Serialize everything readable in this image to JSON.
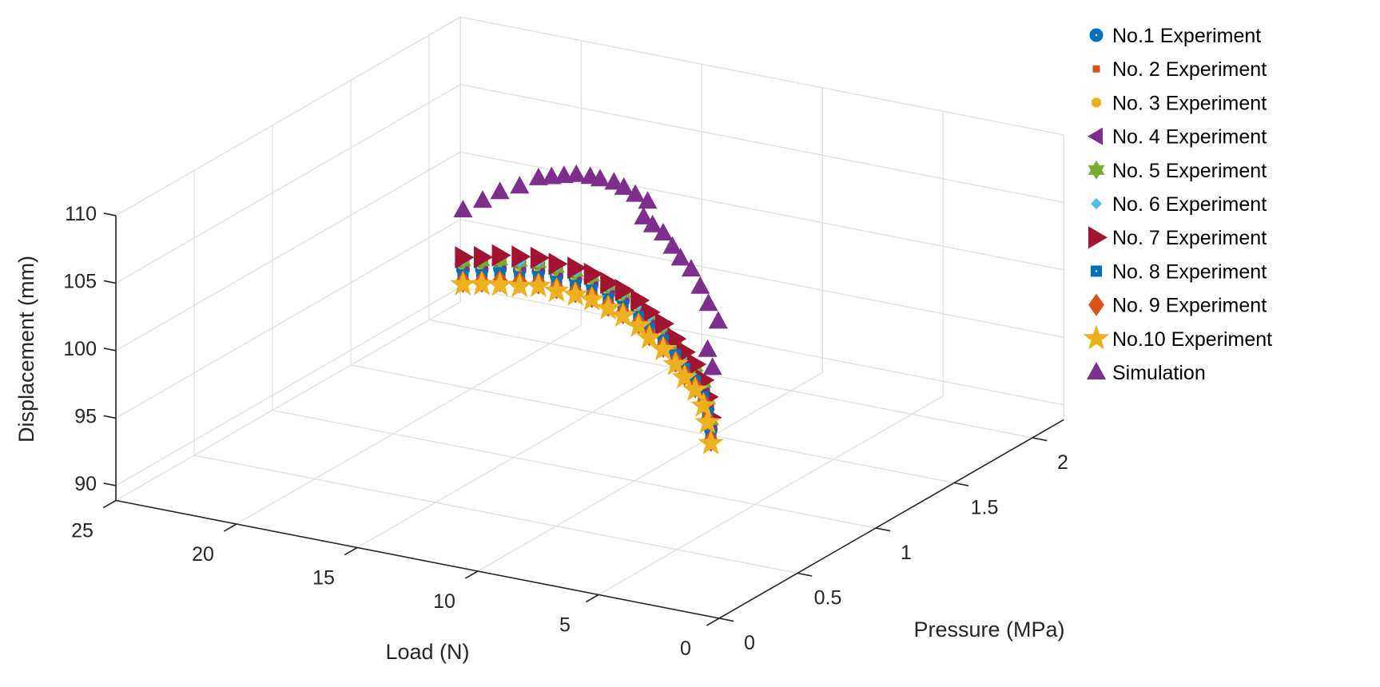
{
  "chart_data": {
    "type": "scatter3d",
    "xlabel": "Load (N)",
    "ylabel": "Pressure (MPa)",
    "zlabel": "Displacement (mm)",
    "xlim": [
      0,
      25
    ],
    "ylim": [
      0,
      2.2
    ],
    "zlim": [
      88.9,
      110
    ],
    "xticks": [
      0,
      5,
      10,
      15,
      20,
      25
    ],
    "xtick_labels": [
      "0",
      "5",
      "10",
      "15",
      "20",
      "25"
    ],
    "yticks": [
      0,
      0.5,
      1,
      1.5,
      2
    ],
    "ytick_labels": [
      "0",
      "0.5",
      "1",
      "1.5",
      "2"
    ],
    "zticks": [
      90,
      95,
      100,
      105,
      110
    ],
    "ztick_labels": [
      "90",
      "95",
      "100",
      "105",
      "110"
    ],
    "grid": true,
    "legend_position": "right-outside",
    "experiment_points": {
      "load": [
        24.7,
        23.4,
        22.0,
        20.6,
        19.3,
        17.9,
        16.6,
        15.4,
        14.2,
        13.2,
        12.1,
        11.2,
        10.3,
        9.4,
        8.7,
        8.0,
        7.4,
        7.1,
        6.9
      ],
      "pressure": [
        2.17,
        2.09,
        1.99,
        1.9,
        1.82,
        1.72,
        1.64,
        1.56,
        1.48,
        1.42,
        1.35,
        1.28,
        1.23,
        1.17,
        1.12,
        1.08,
        1.04,
        1.02,
        1.01
      ]
    },
    "series": [
      {
        "name": "No.1 Experiment",
        "marker": "circle-dot",
        "color": "#0072BD",
        "displacement": [
          91.6,
          92.6,
          93.8,
          94.8,
          95.7,
          96.5,
          97.3,
          97.9,
          98.2,
          98.4,
          98.4,
          98.2,
          98.0,
          97.6,
          97.2,
          96.8,
          96.1,
          95.1,
          93.7
        ]
      },
      {
        "name": "No. 2 Experiment",
        "marker": "small-square",
        "color": "#D95319",
        "displacement": [
          90.3,
          92.0,
          93.4,
          94.2,
          95.3,
          95.9,
          96.8,
          97.2,
          97.7,
          97.8,
          98.0,
          97.7,
          97.6,
          97.1,
          96.8,
          96.3,
          95.7,
          94.6,
          93.2
        ]
      },
      {
        "name": "No. 3 Experiment",
        "marker": "octagon",
        "color": "#EDB120",
        "displacement": [
          91.9,
          92.8,
          94.0,
          95.0,
          95.9,
          96.7,
          97.4,
          98.0,
          98.3,
          98.4,
          98.5,
          98.4,
          98.2,
          97.8,
          97.4,
          97.0,
          96.3,
          95.3,
          93.9
        ]
      },
      {
        "name": "No. 4 Experiment",
        "marker": "triangle-left",
        "color": "#7E2F8E",
        "displacement": [
          92.0,
          93.0,
          94.2,
          95.2,
          96.1,
          96.9,
          97.6,
          98.2,
          98.5,
          98.7,
          98.8,
          98.7,
          98.5,
          98.1,
          97.7,
          97.3,
          96.6,
          95.6,
          94.2
        ]
      },
      {
        "name": "No. 5 Experiment",
        "marker": "hexagram",
        "color": "#77AC30",
        "displacement": [
          92.2,
          93.2,
          94.4,
          95.4,
          96.3,
          97.1,
          97.8,
          98.4,
          98.7,
          98.9,
          99.0,
          98.9,
          98.7,
          98.3,
          97.9,
          97.5,
          96.8,
          95.8,
          94.4
        ]
      },
      {
        "name": "No. 6 Experiment",
        "marker": "small-diamond",
        "color": "#4DBEEE",
        "displacement": [
          92.3,
          93.4,
          94.7,
          95.4,
          96.4,
          97.2,
          97.8,
          98.5,
          98.7,
          98.9,
          98.9,
          98.8,
          98.7,
          98.3,
          97.9,
          97.5,
          96.8,
          95.8,
          94.4
        ]
      },
      {
        "name": "No. 7 Experiment",
        "marker": "triangle-right",
        "color": "#A2142F",
        "displacement": [
          92.5,
          93.5,
          94.8,
          95.8,
          96.7,
          97.4,
          98.1,
          98.6,
          98.9,
          99.1,
          99.2,
          99.1,
          98.9,
          98.5,
          98.1,
          97.7,
          97.0,
          96.0,
          94.6
        ]
      },
      {
        "name": "No. 8 Experiment",
        "marker": "square-dot",
        "color": "#0072BD",
        "displacement": [
          91.2,
          92.2,
          93.5,
          94.3,
          95.3,
          96.1,
          96.8,
          97.4,
          97.7,
          97.9,
          98.0,
          97.9,
          97.7,
          97.3,
          96.9,
          96.5,
          95.8,
          94.8,
          93.4
        ]
      },
      {
        "name": "No. 9 Experiment",
        "marker": "diamond",
        "color": "#D95319",
        "displacement": [
          90.7,
          91.7,
          92.9,
          93.9,
          94.8,
          95.6,
          96.3,
          96.9,
          97.2,
          97.4,
          97.5,
          97.4,
          97.2,
          96.8,
          96.4,
          96.0,
          95.3,
          94.3,
          92.9
        ]
      },
      {
        "name": "No.10 Experiment",
        "marker": "pentagram",
        "color": "#EDB120",
        "displacement": [
          90.5,
          91.5,
          92.6,
          93.6,
          94.6,
          95.4,
          96.1,
          96.7,
          97.0,
          97.2,
          97.3,
          97.2,
          97.0,
          96.6,
          96.2,
          95.8,
          95.1,
          94.1,
          92.7
        ]
      }
    ],
    "simulation": {
      "name": "Simulation",
      "marker": "triangle-up",
      "color": "#7E2F8E",
      "load": [
        24.7,
        23.3,
        22.0,
        20.6,
        19.3,
        18.3,
        17.4,
        16.5,
        15.6,
        14.8,
        13.9,
        13.1,
        12.3,
        11.4,
        11.7,
        11.0,
        10.3,
        9.6,
        9.0,
        8.3,
        7.6,
        7.0,
        6.4,
        7.1,
        6.7
      ],
      "pressure": [
        2.17,
        2.08,
        1.99,
        1.9,
        1.82,
        1.75,
        1.69,
        1.63,
        1.58,
        1.52,
        1.47,
        1.41,
        1.36,
        1.3,
        1.32,
        1.27,
        1.23,
        1.18,
        1.14,
        1.1,
        1.05,
        1.01,
        0.98,
        1.02,
        0.99
      ],
      "displacement": [
        96.0,
        97.8,
        99.5,
        101.0,
        102.6,
        103.5,
        104.3,
        105.1,
        105.6,
        106.1,
        106.5,
        106.8,
        106.9,
        107.1,
        105.7,
        105.7,
        105.6,
        105.2,
        104.8,
        104.5,
        103.8,
        103.0,
        102.1,
        99.5,
        98.5
      ]
    }
  }
}
